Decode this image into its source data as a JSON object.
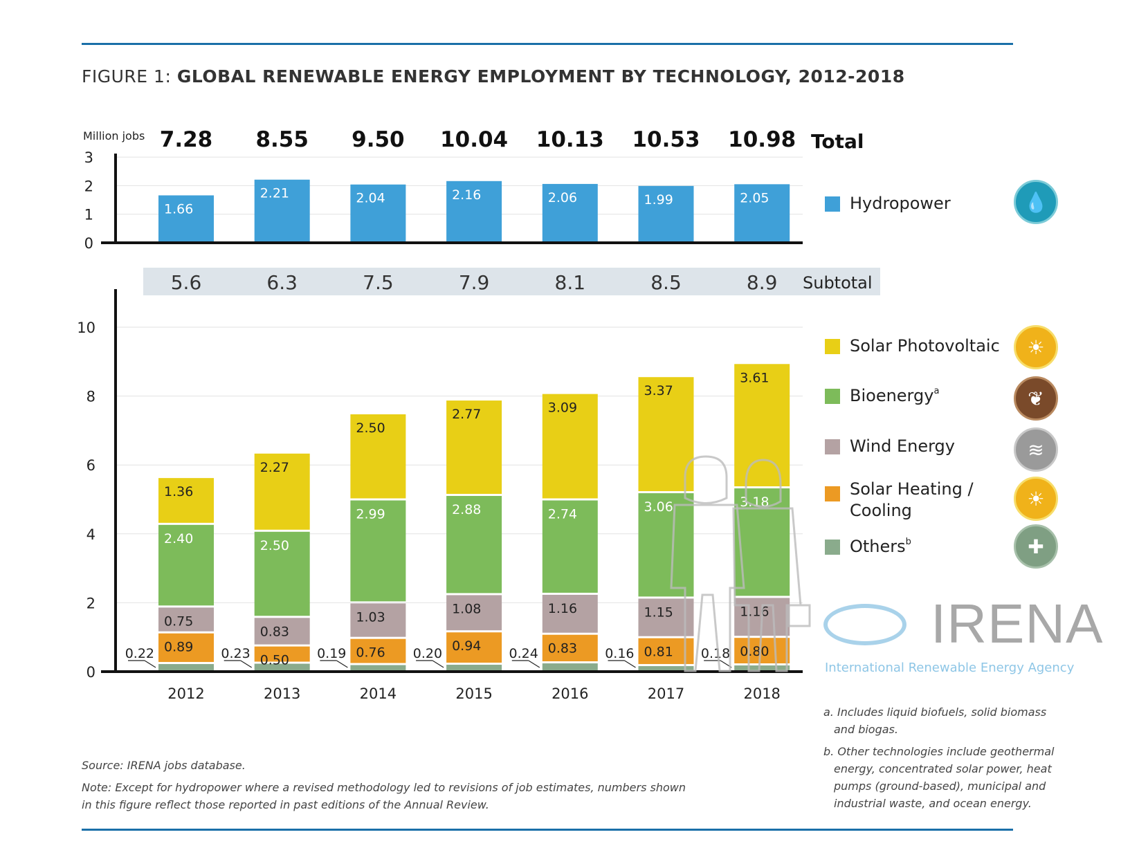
{
  "title_prefix": "FIGURE 1: ",
  "title_main": "GLOBAL RENEWABLE ENERGY EMPLOYMENT BY TECHNOLOGY, 2012-2018",
  "chart_data": [
    {
      "type": "bar",
      "ylabel": "Million jobs",
      "categories": [
        "2012",
        "2013",
        "2014",
        "2015",
        "2016",
        "2017",
        "2018"
      ],
      "series": [
        {
          "name": "Hydropower",
          "values": [
            1.66,
            2.21,
            2.04,
            2.16,
            2.06,
            1.99,
            2.05
          ],
          "color": "#3fa0d8"
        }
      ],
      "ylim": [
        0,
        3
      ],
      "yticks": [
        0,
        1,
        2,
        3
      ],
      "totals_label": "Total",
      "totals": [
        "7.28",
        "8.55",
        "9.50",
        "10.04",
        "10.13",
        "10.53",
        "10.98"
      ],
      "grid": true
    },
    {
      "type": "stacked-bar",
      "categories": [
        "2012",
        "2013",
        "2014",
        "2015",
        "2016",
        "2017",
        "2018"
      ],
      "series": [
        {
          "name": "Others",
          "sup": "b",
          "values": [
            0.22,
            0.23,
            0.19,
            0.2,
            0.24,
            0.16,
            0.18
          ],
          "color": "#8aab8c"
        },
        {
          "name": "Solar Heating / Cooling",
          "values": [
            0.89,
            0.5,
            0.76,
            0.94,
            0.83,
            0.81,
            0.8
          ],
          "color": "#ec9a23"
        },
        {
          "name": "Wind Energy",
          "values": [
            0.75,
            0.83,
            1.03,
            1.08,
            1.16,
            1.15,
            1.16
          ],
          "color": "#b4a2a3"
        },
        {
          "name": "Bioenergy",
          "sup": "a",
          "values": [
            2.4,
            2.5,
            2.99,
            2.88,
            2.74,
            3.06,
            3.18
          ],
          "color": "#7dbb5a"
        },
        {
          "name": "Solar Photovoltaic",
          "values": [
            1.36,
            2.27,
            2.5,
            2.77,
            3.09,
            3.37,
            3.61
          ],
          "color": "#e8cf16"
        }
      ],
      "ylim": [
        0,
        11
      ],
      "yticks": [
        0,
        2,
        4,
        6,
        8,
        10
      ],
      "subtotal_label": "Subtotal",
      "subtotals": [
        "5.6",
        "6.3",
        "7.5",
        "7.9",
        "8.1",
        "8.5",
        "8.9"
      ],
      "grid": true,
      "legend": "right"
    }
  ],
  "legend": {
    "hydro": "Hydropower",
    "pv": "Solar Photovoltaic",
    "bio": "Bioenergy",
    "bio_sup": "a",
    "wind": "Wind Energy",
    "shc_1": "Solar Heating /",
    "shc_2": "Cooling",
    "others": "Others",
    "others_sup": "b"
  },
  "logo": {
    "name": "IRENA",
    "tagline": "International Renewable Energy Agency"
  },
  "source": "Source: IRENA jobs database.",
  "note_1": "Note: Except for hydropower where a revised methodology led to revisions of job estimates, numbers shown",
  "note_2": "in this figure reflect those reported in past editions of the Annual Review.",
  "footnote_a_1": "a. Includes liquid biofuels, solid biomass",
  "footnote_a_2": "and biogas.",
  "footnote_b_1": "b. Other technologies include geothermal",
  "footnote_b_2": "energy, concentrated solar power, heat",
  "footnote_b_3": "pumps (ground-based), municipal and",
  "footnote_b_4": "industrial waste, and ocean energy."
}
